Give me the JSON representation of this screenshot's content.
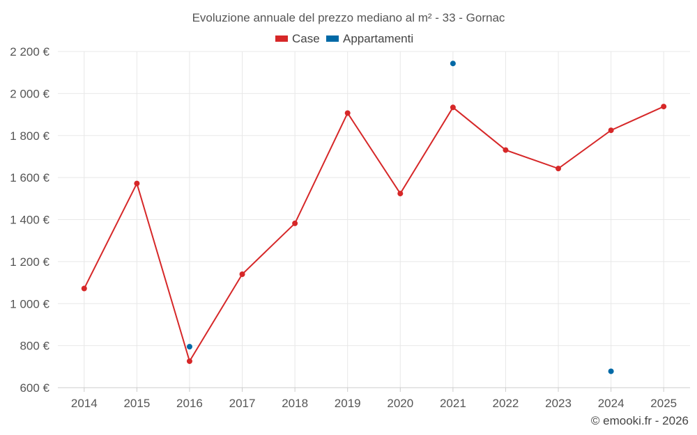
{
  "chart_data": {
    "type": "line",
    "title": "Evoluzione annuale del prezzo mediano al m² - 33 - Gornac",
    "categories": [
      "2014",
      "2015",
      "2016",
      "2017",
      "2018",
      "2019",
      "2020",
      "2021",
      "2022",
      "2023",
      "2024",
      "2025"
    ],
    "series": [
      {
        "name": "Case",
        "color": "#d62728",
        "values": [
          1072,
          1572,
          726,
          1140,
          1382,
          1907,
          1524,
          1934,
          1731,
          1643,
          1825,
          1938
        ]
      },
      {
        "name": "Appartamenti",
        "color": "#0069a6",
        "values": [
          null,
          null,
          795,
          null,
          null,
          null,
          null,
          2143,
          null,
          null,
          678,
          null
        ]
      }
    ],
    "ylim": [
      600,
      2200
    ],
    "yticks": [
      600,
      800,
      1000,
      1200,
      1400,
      1600,
      1800,
      2000,
      2200
    ],
    "ytick_labels": [
      "600 €",
      "800 €",
      "1 000 €",
      "1 200 €",
      "1 400 €",
      "1 600 €",
      "1 800 €",
      "2 000 €",
      "2 200 €"
    ],
    "xlabel": "",
    "ylabel": "",
    "legend_position": "top-center",
    "grid": true
  },
  "credit": "© emooki.fr - 2026"
}
